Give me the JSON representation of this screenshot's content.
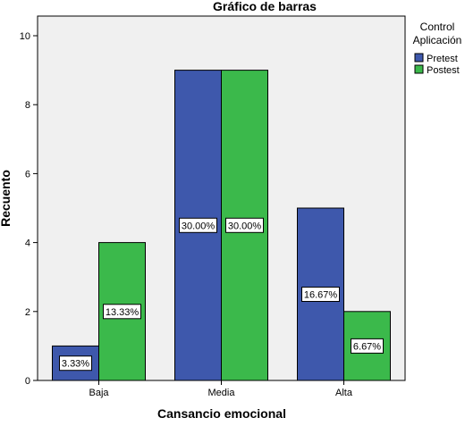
{
  "chart_data": {
    "type": "bar",
    "title": "Gráfico de barras",
    "xlabel": "Cansancio emocional",
    "ylabel": "Recuento",
    "categories": [
      "Baja",
      "Media",
      "Alta"
    ],
    "series": [
      {
        "name": "Pretest",
        "values": [
          1,
          9,
          5
        ],
        "labels": [
          "3.33%",
          "30.00%",
          "16.67%"
        ],
        "color": "#3e58ac"
      },
      {
        "name": "Postest",
        "values": [
          4,
          9,
          2
        ],
        "labels": [
          "13.33%",
          "30.00%",
          "6.67%"
        ],
        "color": "#3bb94b"
      }
    ],
    "ylim": [
      0,
      10
    ],
    "yticks": [
      0,
      2,
      4,
      6,
      8,
      10
    ],
    "grid": false,
    "legend": {
      "title_lines": [
        "Control",
        "Aplicación"
      ],
      "placement": "right"
    },
    "plot_background": "#f0f0f0"
  }
}
